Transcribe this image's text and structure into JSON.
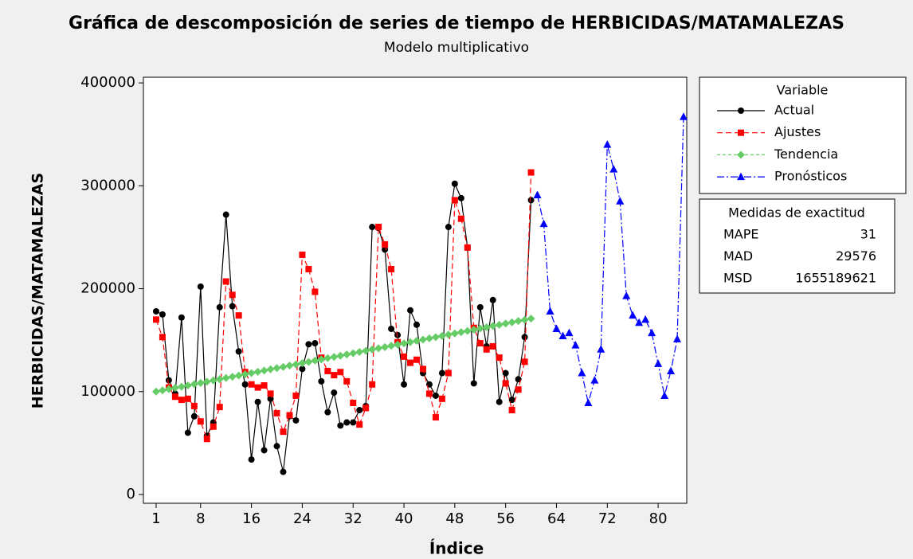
{
  "chart_data": {
    "type": "line",
    "title": "Gráfica de descomposición de series de tiempo de HERBICIDAS/MATAMALEZAS",
    "subtitle": "Modelo multiplicativo",
    "x_label": "Índice",
    "y_label": "HERBICIDAS/MATAMALEZAS",
    "legend_title": "Variable",
    "x": [
      1,
      2,
      3,
      4,
      5,
      6,
      7,
      8,
      9,
      10,
      11,
      12,
      13,
      14,
      15,
      16,
      17,
      18,
      19,
      20,
      21,
      22,
      23,
      24,
      25,
      26,
      27,
      28,
      29,
      30,
      31,
      32,
      33,
      34,
      35,
      36,
      37,
      38,
      39,
      40,
      41,
      42,
      43,
      44,
      45,
      46,
      47,
      48,
      49,
      50,
      51,
      52,
      53,
      54,
      55,
      56,
      57,
      58,
      59,
      60,
      61,
      62,
      63,
      64,
      65,
      66,
      67,
      68,
      69,
      70,
      71,
      72,
      73,
      74,
      75,
      76,
      77,
      78,
      79,
      80,
      81,
      82,
      83,
      84
    ],
    "series": [
      {
        "name": "Actual",
        "color": "#000000",
        "marker": "circle",
        "dash": "",
        "values": [
          178000,
          175000,
          111000,
          98000,
          172000,
          60000,
          76000,
          202000,
          57000,
          70000,
          182000,
          272000,
          183000,
          139000,
          107000,
          34000,
          90000,
          43000,
          93000,
          47000,
          22000,
          76000,
          72000,
          122000,
          146000,
          147000,
          110000,
          80000,
          99000,
          67000,
          70000,
          70000,
          82000,
          86000,
          260000,
          259000,
          238000,
          161000,
          155000,
          107000,
          179000,
          165000,
          118000,
          107000,
          96000,
          118000,
          260000,
          302000,
          288000,
          240000,
          108000,
          182000,
          144000,
          189000,
          90000,
          118000,
          92000,
          112000,
          153000,
          286000,
          null,
          null,
          null,
          null,
          null,
          null,
          null,
          null,
          null,
          null,
          null,
          null,
          null,
          null,
          null,
          null,
          null,
          null,
          null,
          null,
          null,
          null,
          null,
          null
        ]
      },
      {
        "name": "Ajustes",
        "color": "#ff0000",
        "marker": "square",
        "dash": "7 4",
        "values": [
          170000,
          153000,
          104000,
          95000,
          92000,
          93000,
          86000,
          71000,
          54000,
          66000,
          85000,
          207000,
          194000,
          174000,
          119000,
          107000,
          104000,
          106000,
          98000,
          79000,
          61000,
          77000,
          96000,
          233000,
          219000,
          197000,
          133000,
          120000,
          116000,
          119000,
          110000,
          89000,
          68000,
          84000,
          107000,
          260000,
          243000,
          219000,
          148000,
          134000,
          128000,
          131000,
          122000,
          98000,
          75000,
          93000,
          118000,
          286000,
          268000,
          240000,
          162000,
          147000,
          141000,
          144000,
          133000,
          108000,
          82000,
          102000,
          129000,
          313000,
          null,
          null,
          null,
          null,
          null,
          null,
          null,
          null,
          null,
          null,
          null,
          null,
          null,
          null,
          null,
          null,
          null,
          null,
          null,
          null,
          null,
          null,
          null,
          null
        ]
      },
      {
        "name": "Tendencia",
        "color": "#66cc66",
        "marker": "diamond",
        "dash": "4 3",
        "values": [
          100003,
          101206,
          102409,
          103612,
          104815,
          106018,
          107221,
          108424,
          109627,
          110830,
          112033,
          113236,
          114439,
          115642,
          116845,
          118048,
          119251,
          120454,
          121657,
          122860,
          124063,
          125266,
          126469,
          127672,
          128875,
          130078,
          131281,
          132484,
          133687,
          134890,
          136093,
          137296,
          138499,
          139702,
          140905,
          142108,
          143311,
          144514,
          145717,
          146920,
          148123,
          149326,
          150529,
          151732,
          152935,
          154138,
          155341,
          156544,
          157747,
          158950,
          160153,
          161356,
          162559,
          163762,
          164965,
          166168,
          167371,
          168574,
          169777,
          170980,
          null,
          null,
          null,
          null,
          null,
          null,
          null,
          null,
          null,
          null,
          null,
          null,
          null,
          null,
          null,
          null,
          null,
          null,
          null,
          null,
          null,
          null,
          null,
          null
        ]
      },
      {
        "name": "Pronósticos",
        "color": "#0000ff",
        "marker": "triangle",
        "dash": "9 3 2 3",
        "values": [
          null,
          null,
          null,
          null,
          null,
          null,
          null,
          null,
          null,
          null,
          null,
          null,
          null,
          null,
          null,
          null,
          null,
          null,
          null,
          null,
          null,
          null,
          null,
          null,
          null,
          null,
          null,
          null,
          null,
          null,
          null,
          null,
          null,
          null,
          null,
          null,
          null,
          null,
          null,
          null,
          null,
          null,
          null,
          null,
          null,
          null,
          null,
          null,
          null,
          null,
          null,
          null,
          null,
          null,
          null,
          null,
          null,
          null,
          null,
          null,
          291000,
          263000,
          178000,
          161000,
          154000,
          157000,
          145000,
          118000,
          89000,
          111000,
          141000,
          340000,
          316000,
          285000,
          193000,
          174000,
          167000,
          170000,
          157000,
          127000,
          96000,
          120000,
          151000,
          367000
        ]
      }
    ],
    "xlim": [
      -1,
      84.5
    ],
    "ylim": [
      -8500,
      405500
    ],
    "xticks": [
      1,
      8,
      16,
      24,
      32,
      40,
      48,
      56,
      64,
      72,
      80
    ],
    "yticks": [
      0,
      100000,
      200000,
      300000,
      400000
    ],
    "accuracy": {
      "title": "Medidas de exactitud",
      "rows": [
        [
          "MAPE",
          31
        ],
        [
          "MAD",
          29576
        ],
        [
          "MSD",
          1655189621
        ]
      ]
    }
  }
}
